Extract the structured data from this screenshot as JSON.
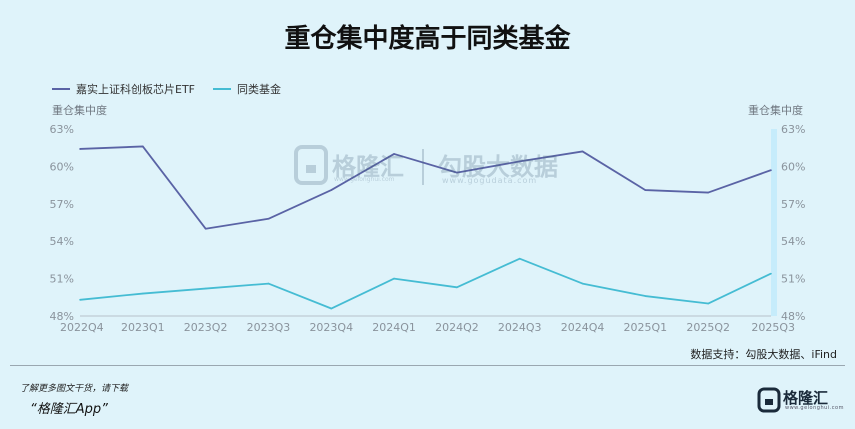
{
  "title": "重仓集中度高于同类基金",
  "chart_data": {
    "type": "line",
    "categories": [
      "2022Q4",
      "2023Q1",
      "2023Q2",
      "2023Q3",
      "2023Q4",
      "2024Q1",
      "2024Q2",
      "2024Q3",
      "2024Q4",
      "2025Q1",
      "2025Q2",
      "2025Q3"
    ],
    "series": [
      {
        "name": "嘉实上证科创板芯片ETF",
        "color": "#5a63a5",
        "values": [
          61.4,
          61.6,
          55.0,
          55.8,
          58.1,
          61.0,
          59.5,
          60.4,
          61.2,
          58.1,
          57.9,
          59.7
        ]
      },
      {
        "name": "同类基金",
        "color": "#45bcd3",
        "values": [
          49.3,
          49.8,
          50.2,
          50.6,
          48.6,
          51.0,
          50.3,
          52.6,
          50.6,
          49.6,
          49.0,
          51.4
        ]
      }
    ],
    "ylabel_left": "重仓集中度",
    "ylabel_right": "重仓集中度",
    "ylim": [
      48,
      63
    ],
    "yticks": [
      48,
      51,
      54,
      57,
      60,
      63
    ],
    "ytick_suffix": "%",
    "grid": false,
    "legend": "top-left"
  },
  "source": "数据支持：勾股大数据、iFind",
  "footer": {
    "note": "了解更多图文干货，请下载",
    "app": "“格隆汇App”",
    "logo_name": "格隆汇",
    "logo_sub": "www.gelonghui.com"
  },
  "watermark": {
    "name1": "格隆汇",
    "sub1": "www.gelonghui.com",
    "name2": "勾股大数据",
    "sub2": "www.gogudata.com"
  },
  "colors": {
    "background": "#dff3fa",
    "axis": "#b7c2ca",
    "right_highlight": "#c6ecfb"
  }
}
